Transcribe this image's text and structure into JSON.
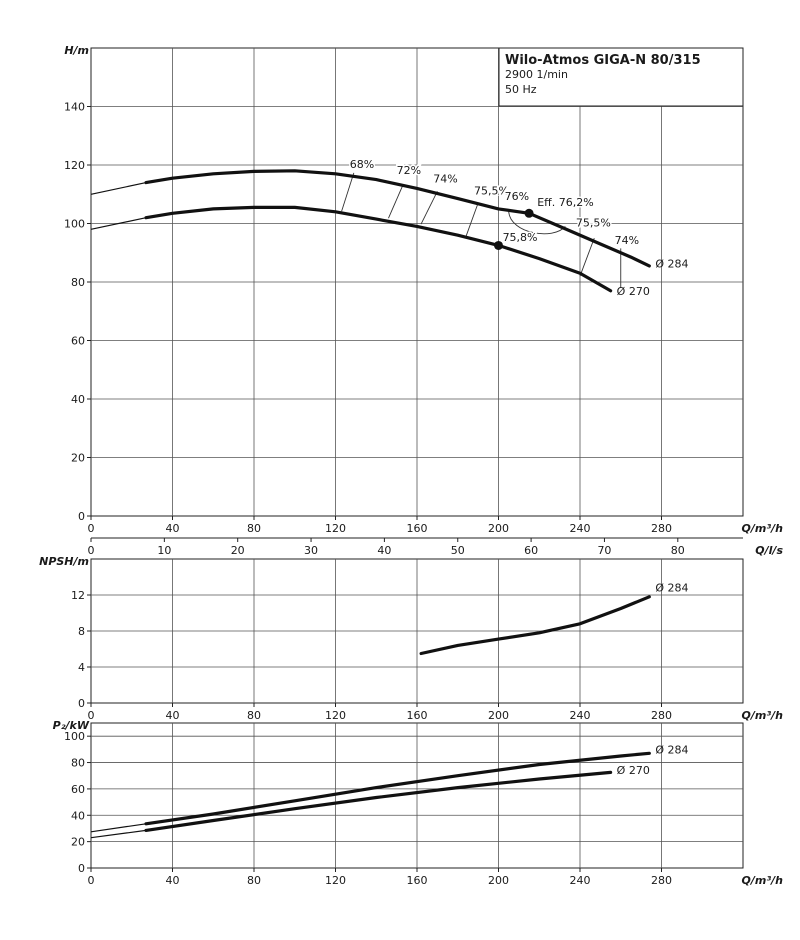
{
  "legend_box": {
    "title": "Wilo-Atmos GIGA-N 80/315",
    "speed": "2900 1/min",
    "frequency": "50 Hz"
  },
  "units": {
    "flow_m3h": "Q/m³/h",
    "flow_ls": "Q/l/s",
    "head": "H/m",
    "npsh": "NPSH/m",
    "power": "P₂/kW"
  },
  "efficiency_point": {
    "label": "Eff. 76,2%",
    "Q": 215,
    "H": 103.5
  },
  "chart_data": [
    {
      "type": "line",
      "panel": "head",
      "ylabel": "H/m",
      "xlabel": "Q/m³/h",
      "xlim": [
        0,
        320
      ],
      "ylim": [
        0,
        160
      ],
      "x_ticks": [
        0,
        40,
        80,
        120,
        160,
        200,
        240,
        280
      ],
      "y_ticks": [
        0,
        20,
        40,
        60,
        80,
        100,
        120,
        140
      ],
      "secondary_x_axis": {
        "label": "Q/l/s",
        "ticks": [
          0,
          10,
          20,
          30,
          40,
          50,
          60,
          70,
          80
        ]
      },
      "series": [
        {
          "name": "Ø 284",
          "points": [
            [
              0,
              110
            ],
            [
              27,
              114
            ],
            [
              40,
              115.5
            ],
            [
              60,
              117
            ],
            [
              80,
              117.8
            ],
            [
              100,
              118
            ],
            [
              120,
              117
            ],
            [
              140,
              115
            ],
            [
              160,
              112
            ],
            [
              180,
              108.5
            ],
            [
              200,
              105
            ],
            [
              215,
              103.5
            ],
            [
              230,
              99
            ],
            [
              250,
              93
            ],
            [
              265,
              88.5
            ],
            [
              274,
              85.5
            ]
          ],
          "thick_from": 27
        },
        {
          "name": "Ø 270",
          "points": [
            [
              0,
              98
            ],
            [
              27,
              102
            ],
            [
              40,
              103.5
            ],
            [
              60,
              105
            ],
            [
              80,
              105.5
            ],
            [
              100,
              105.5
            ],
            [
              120,
              104
            ],
            [
              140,
              101.5
            ],
            [
              160,
              99
            ],
            [
              180,
              96
            ],
            [
              200,
              92.5
            ],
            [
              220,
              88
            ],
            [
              240,
              83
            ],
            [
              255,
              77
            ]
          ],
          "thick_from": 27
        }
      ],
      "efficiency_lines": [
        {
          "label": "68%",
          "from": [
            123,
            104.2
          ],
          "to": [
            129,
            117.3
          ],
          "label_at": [
            127,
            119
          ]
        },
        {
          "label": "72%",
          "from": [
            146,
            101.8
          ],
          "to": [
            153,
            113
          ],
          "label_at": [
            150,
            117
          ]
        },
        {
          "label": "74%",
          "from": [
            162,
            99.8
          ],
          "to": [
            170,
            111
          ],
          "label_at": [
            168,
            114
          ]
        },
        {
          "label": "75,5%",
          "from": [
            184,
            95.5
          ],
          "to": [
            190,
            107
          ],
          "label_at": [
            188,
            110
          ]
        },
        {
          "label": "75,5%",
          "from": [
            240,
            82
          ],
          "to": [
            247,
            95
          ],
          "label_at": [
            242,
            100
          ]
        },
        {
          "label": "74%",
          "from": [
            260,
            78
          ],
          "to": [
            260,
            91.5
          ],
          "label_at": [
            262,
            93
          ]
        },
        {
          "label": "76%",
          "from": [
            207,
            104
          ],
          "to": [
            215,
            103.5
          ],
          "label_at": [
            203,
            108
          ]
        }
      ],
      "annotations": [
        {
          "text": "68%",
          "x": 127,
          "y": 119
        },
        {
          "text": "72%",
          "x": 150,
          "y": 117
        },
        {
          "text": "74%",
          "x": 168,
          "y": 114
        },
        {
          "text": "75,5%",
          "x": 188,
          "y": 110
        },
        {
          "text": "76%",
          "x": 203,
          "y": 108
        },
        {
          "text": "Eff. 76,2%",
          "x": 219,
          "y": 106
        },
        {
          "text": "75,5%",
          "x": 238,
          "y": 99
        },
        {
          "text": "74%",
          "x": 257,
          "y": 93
        },
        {
          "text": "75,8%",
          "x": 202,
          "y": 94
        },
        {
          "text": "Ø 284",
          "x": 277,
          "y": 85
        },
        {
          "text": "Ø 270",
          "x": 258,
          "y": 75.5
        }
      ],
      "markers": [
        {
          "x": 215,
          "y": 103.5
        },
        {
          "x": 200,
          "y": 92.5
        }
      ]
    },
    {
      "type": "line",
      "panel": "npsh",
      "ylabel": "NPSH/m",
      "xlabel": "Q/m³/h",
      "xlim": [
        0,
        320
      ],
      "ylim": [
        0,
        16
      ],
      "x_ticks": [
        0,
        40,
        80,
        120,
        160,
        200,
        240,
        280
      ],
      "y_ticks": [
        0,
        4,
        8,
        12
      ],
      "series": [
        {
          "name": "Ø 284",
          "points": [
            [
              162,
              5.5
            ],
            [
              180,
              6.4
            ],
            [
              200,
              7.1
            ],
            [
              220,
              7.8
            ],
            [
              240,
              8.8
            ],
            [
              260,
              10.5
            ],
            [
              274,
              11.8
            ]
          ]
        }
      ]
    },
    {
      "type": "line",
      "panel": "power",
      "ylabel": "P₂/kW",
      "xlabel": "Q/m³/h",
      "xlim": [
        0,
        320
      ],
      "ylim": [
        0,
        110
      ],
      "x_ticks": [
        0,
        40,
        80,
        120,
        160,
        200,
        240,
        280
      ],
      "y_ticks": [
        0,
        20,
        40,
        60,
        80,
        100
      ],
      "series": [
        {
          "name": "Ø 284",
          "points": [
            [
              0,
              27.5
            ],
            [
              27,
              33.5
            ],
            [
              60,
              41
            ],
            [
              100,
              51
            ],
            [
              140,
              61
            ],
            [
              180,
              70
            ],
            [
              220,
              78.5
            ],
            [
              260,
              85
            ],
            [
              274,
              87
            ]
          ],
          "thick_from": 27
        },
        {
          "name": "Ø 270",
          "points": [
            [
              0,
              23
            ],
            [
              27,
              28.5
            ],
            [
              60,
              36
            ],
            [
              100,
              45
            ],
            [
              140,
              53.5
            ],
            [
              180,
              61
            ],
            [
              220,
              67.5
            ],
            [
              255,
              72.5
            ]
          ],
          "thick_from": 27
        }
      ]
    }
  ]
}
